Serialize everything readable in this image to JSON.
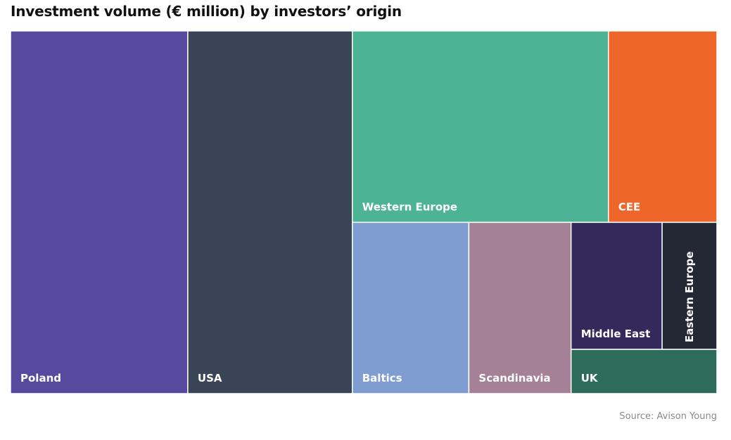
{
  "chart_data": {
    "type": "treemap",
    "title": "Investment volume (€ million) by investors’ origin",
    "unit": "€ million",
    "nodes": [
      {
        "name": "Poland",
        "value": 628,
        "color": "#574a9e"
      },
      {
        "name": "USA",
        "value": 583,
        "color": "#394556"
      },
      {
        "name": "Western Europe",
        "value": 479,
        "color": "#4cb394"
      },
      {
        "name": "CEE",
        "value": 203,
        "color": "#ee6629"
      },
      {
        "name": "Baltics",
        "value": 195,
        "color": "#7f9dd1"
      },
      {
        "name": "Scandinavia",
        "value": 171,
        "color": "#a48197"
      },
      {
        "name": "Middle East",
        "value": 113,
        "color": "#33295a"
      },
      {
        "name": "Eastern Europe",
        "value": 68,
        "color": "#232834"
      },
      {
        "name": "UK",
        "value": 63,
        "color": "#2e6b58"
      }
    ],
    "source": "Source: Avison Young"
  }
}
